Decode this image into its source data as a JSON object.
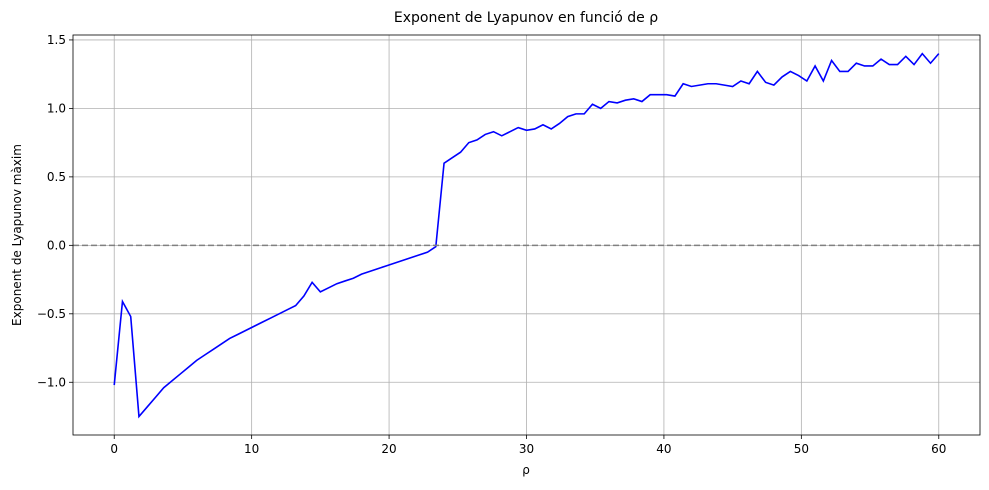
{
  "chart_data": {
    "type": "line",
    "title": "Exponent de Lyapunov en funció de ρ",
    "xlabel": "ρ",
    "ylabel": "Exponent de Lyapunov màxim",
    "x": [
      0,
      0.6,
      1.2,
      1.8,
      2.4,
      3,
      3.6,
      4.2,
      4.8,
      5.4,
      6,
      6.6,
      7.2,
      7.8,
      8.4,
      9,
      9.6,
      10.2,
      10.8,
      11.4,
      12,
      12.6,
      13.2,
      13.8,
      14.4,
      15,
      15.6,
      16.2,
      16.8,
      17.4,
      18,
      18.6,
      19.2,
      19.8,
      20.4,
      21,
      21.6,
      22.2,
      22.8,
      23.4,
      24,
      24.6,
      25.2,
      25.8,
      26.4,
      27,
      27.6,
      28.2,
      28.8,
      29.4,
      30,
      30.6,
      31.2,
      31.8,
      32.4,
      33,
      33.6,
      34.2,
      34.8,
      35.4,
      36,
      36.6,
      37.2,
      37.8,
      38.4,
      39,
      39.6,
      40.2,
      40.8,
      41.4,
      42,
      42.6,
      43.2,
      43.8,
      44.4,
      45,
      45.6,
      46.2,
      46.8,
      47.4,
      48,
      48.6,
      49.2,
      49.8,
      50.4,
      51,
      51.6,
      52.2,
      52.8,
      53.4,
      54,
      54.6,
      55.2,
      55.8,
      56.4,
      57,
      57.6,
      58.2,
      58.8,
      59.4,
      60
    ],
    "values": [
      -1.02,
      -0.41,
      -0.52,
      -1.25,
      -1.18,
      -1.11,
      -1.04,
      -0.99,
      -0.94,
      -0.89,
      -0.84,
      -0.8,
      -0.76,
      -0.72,
      -0.68,
      -0.65,
      -0.62,
      -0.59,
      -0.56,
      -0.53,
      -0.5,
      -0.47,
      -0.44,
      -0.37,
      -0.27,
      -0.34,
      -0.31,
      -0.28,
      -0.26,
      -0.24,
      -0.21,
      -0.19,
      -0.17,
      -0.15,
      -0.13,
      -0.11,
      -0.09,
      -0.07,
      -0.05,
      -0.01,
      0.6,
      0.64,
      0.68,
      0.75,
      0.77,
      0.81,
      0.83,
      0.8,
      0.83,
      0.86,
      0.84,
      0.85,
      0.88,
      0.85,
      0.89,
      0.94,
      0.96,
      0.96,
      1.03,
      1.0,
      1.05,
      1.04,
      1.06,
      1.07,
      1.05,
      1.1,
      1.1,
      1.1,
      1.09,
      1.18,
      1.16,
      1.17,
      1.18,
      1.18,
      1.17,
      1.16,
      1.2,
      1.18,
      1.27,
      1.19,
      1.17,
      1.23,
      1.27,
      1.24,
      1.2,
      1.31,
      1.2,
      1.35,
      1.27,
      1.27,
      1.33,
      1.31,
      1.31,
      1.36,
      1.32,
      1.32,
      1.38,
      1.32,
      1.4,
      1.33,
      1.4
    ],
    "color": "#0000ff",
    "reference_line": {
      "value": 0,
      "color": "#808080",
      "style": "dashed"
    },
    "xlim": [
      -3,
      63
    ],
    "ylim": [
      -1.385,
      1.536
    ],
    "xticks": [
      0,
      10,
      20,
      30,
      40,
      50,
      60
    ],
    "yticks": [
      {
        "value": -1,
        "label": "−1.0"
      },
      {
        "value": -0.5,
        "label": "−0.5"
      },
      {
        "value": 0,
        "label": "0.0"
      },
      0.5,
      {
        "value": 1,
        "label": "1.0"
      },
      1.5
    ],
    "grid": true
  }
}
